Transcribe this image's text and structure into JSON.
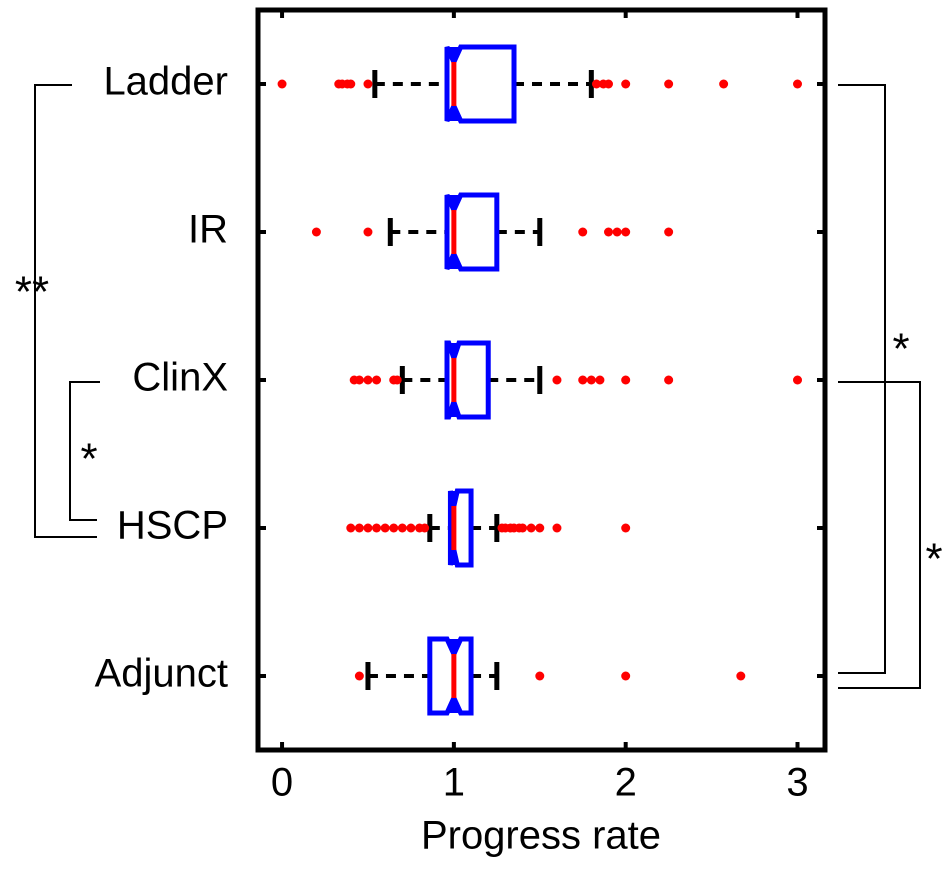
{
  "chart_data": {
    "type": "boxplot",
    "orientation": "horizontal",
    "xlabel": "Progress rate",
    "categories": [
      "Ladder",
      "IR",
      "ClinX",
      "HSCP",
      "Adjunct"
    ],
    "boxes": [
      {
        "whislo": 0.54,
        "q1": 0.96,
        "med": 1.0,
        "q3": 1.35,
        "whishi": 1.8,
        "notch": [
          0.96,
          1.04
        ],
        "fliers": [
          0,
          0.33,
          0.35,
          0.38,
          0.4,
          0.5,
          1.83,
          1.87,
          1.9,
          2.0,
          2.25,
          2.57,
          3.0
        ]
      },
      {
        "whislo": 0.63,
        "q1": 0.96,
        "med": 1.0,
        "q3": 1.25,
        "whishi": 1.5,
        "notch": [
          0.96,
          1.04
        ],
        "fliers": [
          0.2,
          0.5,
          1.75,
          1.9,
          1.95,
          2.0,
          2.25
        ]
      },
      {
        "whislo": 0.7,
        "q1": 0.96,
        "med": 1.0,
        "q3": 1.2,
        "whishi": 1.5,
        "notch": [
          0.97,
          1.03
        ],
        "fliers": [
          0.42,
          0.45,
          0.5,
          0.55,
          0.65,
          0.67,
          1.6,
          1.75,
          1.8,
          1.85,
          2.0,
          2.25,
          3.0
        ]
      },
      {
        "whislo": 0.86,
        "q1": 0.98,
        "med": 1.0,
        "q3": 1.1,
        "whishi": 1.25,
        "notch": [
          0.98,
          1.02
        ],
        "fliers": [
          0.4,
          0.45,
          0.5,
          0.55,
          0.6,
          0.65,
          0.7,
          0.75,
          0.8,
          0.83,
          1.28,
          1.3,
          1.33,
          1.35,
          1.38,
          1.4,
          1.45,
          1.5,
          1.6,
          2.0
        ]
      },
      {
        "whislo": 0.5,
        "q1": 0.86,
        "med": 1.0,
        "q3": 1.1,
        "whishi": 1.25,
        "notch": [
          0.96,
          1.04
        ],
        "fliers": [
          0.45,
          1.5,
          2.0,
          2.67
        ]
      }
    ],
    "xlim": [
      -0.14,
      3.16
    ],
    "xticks": [
      0,
      1,
      2,
      3
    ],
    "box_color": "#0000ff",
    "median_color": "#ff0000",
    "whisker_color": "#000000",
    "flier_color": "#ff0000",
    "annotations": [
      "**",
      "*",
      "*",
      "*"
    ]
  }
}
